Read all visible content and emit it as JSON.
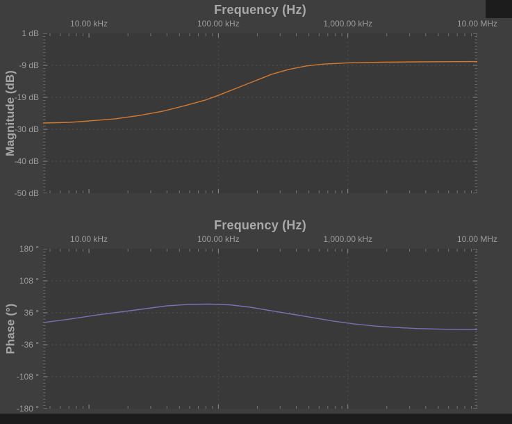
{
  "chart_data": [
    {
      "type": "line",
      "title": "Frequency (Hz)",
      "xlabel": "Frequency (Hz)",
      "ylabel": "Magnitude (dB)",
      "x_scale": "log",
      "grid": "dashed",
      "legend": "none",
      "xlim_khz": [
        4.42,
        10000
      ],
      "ylim": [
        1,
        -50
      ],
      "x_ticks": [
        {
          "label": "10.00 kHz",
          "f_khz": 10
        },
        {
          "label": "100.00 kHz",
          "f_khz": 100
        },
        {
          "label": "1,000.00 kHz",
          "f_khz": 1000
        },
        {
          "label": "10.00 MHz",
          "f_khz": 10000
        }
      ],
      "y_ticks": [
        {
          "label": "1 dB",
          "v": 1
        },
        {
          "label": "-9 dB",
          "v": -9
        },
        {
          "label": "-19 dB",
          "v": -19
        },
        {
          "label": "-30 dB",
          "v": -30
        },
        {
          "label": "-40 dB",
          "v": -40
        },
        {
          "label": "-50 dB",
          "v": -50
        }
      ],
      "grid_x_khz": [
        100,
        1000
      ],
      "series": [
        {
          "name": "Magnitude",
          "color": "#d67a30",
          "points_f_khz_value": [
            [
              4.42,
              -27.6
            ],
            [
              7.1,
              -27.4
            ],
            [
              10.3,
              -26.9
            ],
            [
              15.8,
              -26.3
            ],
            [
              24.4,
              -25.2
            ],
            [
              37.6,
              -23.8
            ],
            [
              54.6,
              -22.1
            ],
            [
              79,
              -20.3
            ],
            [
              101,
              -18.7
            ],
            [
              138,
              -16.5
            ],
            [
              188,
              -14.3
            ],
            [
              256,
              -12.1
            ],
            [
              349,
              -10.5
            ],
            [
              475,
              -9.4
            ],
            [
              649,
              -8.8
            ],
            [
              1000,
              -8.4
            ],
            [
              1860,
              -8.2
            ],
            [
              3450,
              -8.1
            ],
            [
              10000,
              -8.0
            ]
          ]
        }
      ]
    },
    {
      "type": "line",
      "title": "Frequency (Hz)",
      "xlabel": "Frequency (Hz)",
      "ylabel": "Phase (°)",
      "x_scale": "log",
      "grid": "dashed",
      "legend": "none",
      "xlim_khz": [
        4.42,
        10000
      ],
      "ylim": [
        180,
        -180
      ],
      "x_ticks": [
        {
          "label": "10.00 kHz",
          "f_khz": 10
        },
        {
          "label": "100.00 kHz",
          "f_khz": 100
        },
        {
          "label": "1,000.00 kHz",
          "f_khz": 1000
        },
        {
          "label": "10.00 MHz",
          "f_khz": 10000
        }
      ],
      "y_ticks": [
        {
          "label": "180 °",
          "v": 180
        },
        {
          "label": "108 °",
          "v": 108
        },
        {
          "label": "36 °",
          "v": 36
        },
        {
          "label": "-36 °",
          "v": -36
        },
        {
          "label": "-108 °",
          "v": -108
        },
        {
          "label": "-180 °",
          "v": -180
        }
      ],
      "grid_x_khz": [
        100,
        1000
      ],
      "series": [
        {
          "name": "Phase",
          "color": "#7a70b4",
          "points_f_khz_value": [
            [
              4.42,
              13.9
            ],
            [
              7.1,
              21.7
            ],
            [
              11.6,
              31.2
            ],
            [
              19.0,
              39.1
            ],
            [
              27.6,
              45.4
            ],
            [
              40.0,
              51.7
            ],
            [
              58.0,
              54.8
            ],
            [
              84.1,
              55.6
            ],
            [
              122,
              54.0
            ],
            [
              177,
              48.5
            ],
            [
              256,
              40.6
            ],
            [
              372,
              32.8
            ],
            [
              539,
              24.9
            ],
            [
              781,
              17.0
            ],
            [
              1133,
              10.7
            ],
            [
              1642,
              6.0
            ],
            [
              2381,
              2.8
            ],
            [
              3452,
              0.5
            ],
            [
              5665,
              -1.1
            ],
            [
              10000,
              -1.9
            ]
          ]
        }
      ]
    }
  ],
  "colors": {
    "panel_background": "#3e3e3e",
    "plot_background": "#393939",
    "grid": "#525252",
    "tick": "#8d8d8d",
    "text": "#9c9c9c",
    "magnitude_curve": "#d67a30",
    "phase_curve": "#7a70b4",
    "window_edge": "#1c1c1c"
  }
}
